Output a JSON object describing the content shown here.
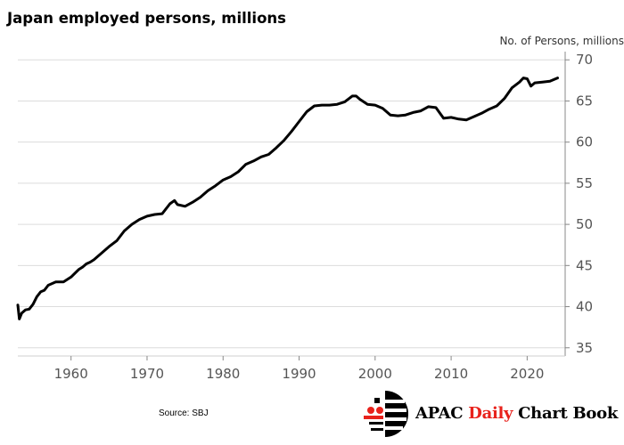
{
  "title": "Japan employed persons, millions",
  "source": "Source: SBJ",
  "brand": {
    "part1": "APAC ",
    "part2": "Daily",
    "part3": " Chart Book"
  },
  "colors": {
    "line": "#000000",
    "grid": "#dcdcdc",
    "brand_red": "#e8221c",
    "axis_text": "#555555"
  },
  "chart_data": {
    "type": "line",
    "title": "Japan employed persons, millions",
    "ylabel": "No. of Persons, millions",
    "xlabel": "",
    "xlim": [
      1953,
      2025
    ],
    "ylim": [
      34,
      71
    ],
    "yticks": [
      35,
      40,
      45,
      50,
      55,
      60,
      65,
      70
    ],
    "xticks": [
      1960,
      1970,
      1980,
      1990,
      2000,
      2010,
      2020
    ],
    "y_axis_position": "right",
    "grid": "horizontal",
    "legend": "none",
    "series": [
      {
        "x": [
          1953.0,
          1953.2,
          1953.5,
          1954.0,
          1954.5,
          1955.0,
          1955.5,
          1956.0,
          1956.5,
          1957.0,
          1958.0,
          1959.0,
          1960.0,
          1961.0,
          1961.5,
          1962.0,
          1962.5,
          1963.0,
          1964.0,
          1965.0,
          1966.0,
          1967.0,
          1968.0,
          1969.0,
          1970.0,
          1971.0,
          1972.0,
          1973.0,
          1973.6,
          1974.0,
          1975.0,
          1976.0,
          1977.0,
          1978.0,
          1979.0,
          1980.0,
          1981.0,
          1982.0,
          1983.0,
          1984.0,
          1985.0,
          1986.0,
          1987.0,
          1988.0,
          1989.0,
          1990.0,
          1991.0,
          1992.0,
          1993.0,
          1994.0,
          1995.0,
          1996.0,
          1997.0,
          1997.5,
          1998.0,
          1999.0,
          2000.0,
          2001.0,
          2002.0,
          2003.0,
          2004.0,
          2005.0,
          2006.0,
          2007.0,
          2008.0,
          2009.0,
          2010.0,
          2011.0,
          2012.0,
          2013.0,
          2014.0,
          2015.0,
          2016.0,
          2017.0,
          2018.0,
          2019.0,
          2019.5,
          2020.0,
          2020.5,
          2021.0,
          2022.0,
          2023.0,
          2024.0
        ],
        "values": [
          40.2,
          38.5,
          39.2,
          39.6,
          39.7,
          40.3,
          41.2,
          41.8,
          42.0,
          42.6,
          43.0,
          43.0,
          43.6,
          44.5,
          44.8,
          45.2,
          45.4,
          45.7,
          46.5,
          47.3,
          48.0,
          49.2,
          50.0,
          50.6,
          51.0,
          51.2,
          51.3,
          52.5,
          52.9,
          52.4,
          52.2,
          52.7,
          53.3,
          54.1,
          54.7,
          55.4,
          55.8,
          56.4,
          57.3,
          57.7,
          58.2,
          58.5,
          59.3,
          60.2,
          61.3,
          62.5,
          63.7,
          64.4,
          64.5,
          64.5,
          64.6,
          64.9,
          65.6,
          65.6,
          65.2,
          64.6,
          64.5,
          64.1,
          63.3,
          63.2,
          63.3,
          63.6,
          63.8,
          64.3,
          64.2,
          62.9,
          63.0,
          62.8,
          62.7,
          63.1,
          63.5,
          64.0,
          64.4,
          65.3,
          66.6,
          67.3,
          67.8,
          67.7,
          66.8,
          67.2,
          67.3,
          67.4,
          67.8
        ]
      }
    ]
  }
}
